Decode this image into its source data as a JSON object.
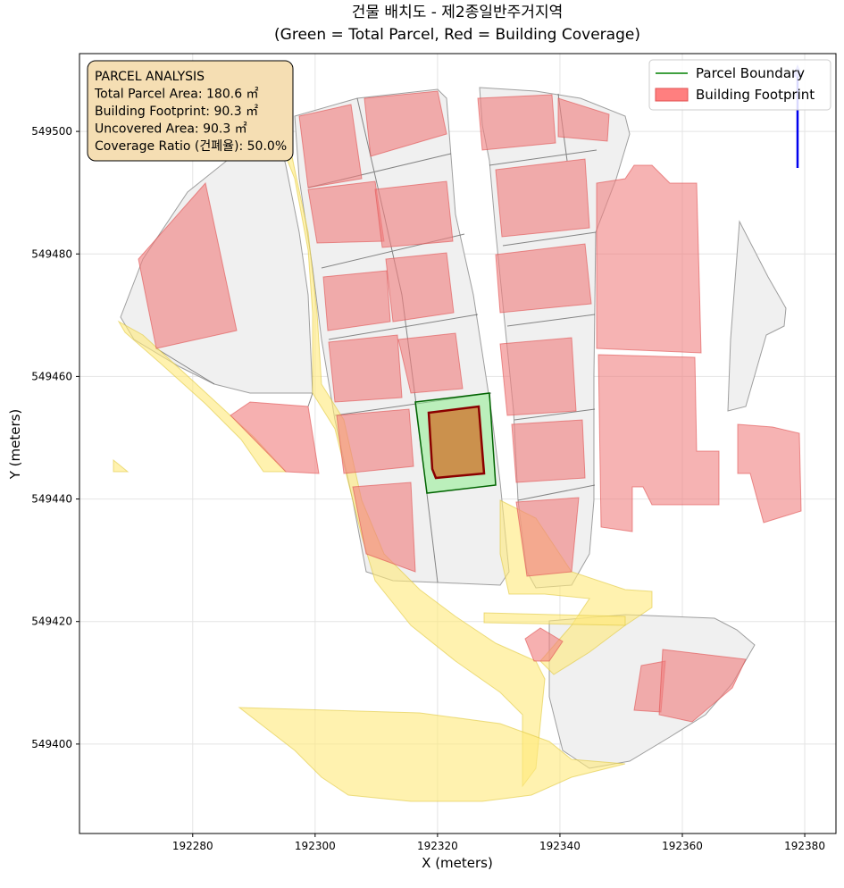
{
  "chart_data": {
    "type": "map",
    "title": [
      "건물 배치도 - 제2종일반주거지역",
      "(Green = Total Parcel, Red = Building Coverage)"
    ],
    "xlabel": "X (meters)",
    "ylabel": "Y (meters)",
    "xlim": [
      192261.5,
      192385.1
    ],
    "ylim": [
      549385.4,
      549512.7
    ],
    "xticks": [
      192280,
      192300,
      192320,
      192340,
      192360,
      192380
    ],
    "yticks": [
      549400,
      549420,
      549440,
      549460,
      549480,
      549500
    ],
    "grid": true,
    "legend": {
      "position": "upper right",
      "entries": [
        {
          "name": "Parcel Boundary",
          "color": "#008000"
        },
        {
          "name": "Building Footprint",
          "color": "#ff7f7f"
        }
      ]
    },
    "annotation": [
      "PARCEL ANALYSIS",
      "Total Parcel Area: 180.6 ㎡",
      "Building Footprint: 90.3 ㎡",
      "Uncovered Area: 90.3 ㎡",
      "Coverage Ratio (건폐율): 50.0%"
    ]
  }
}
